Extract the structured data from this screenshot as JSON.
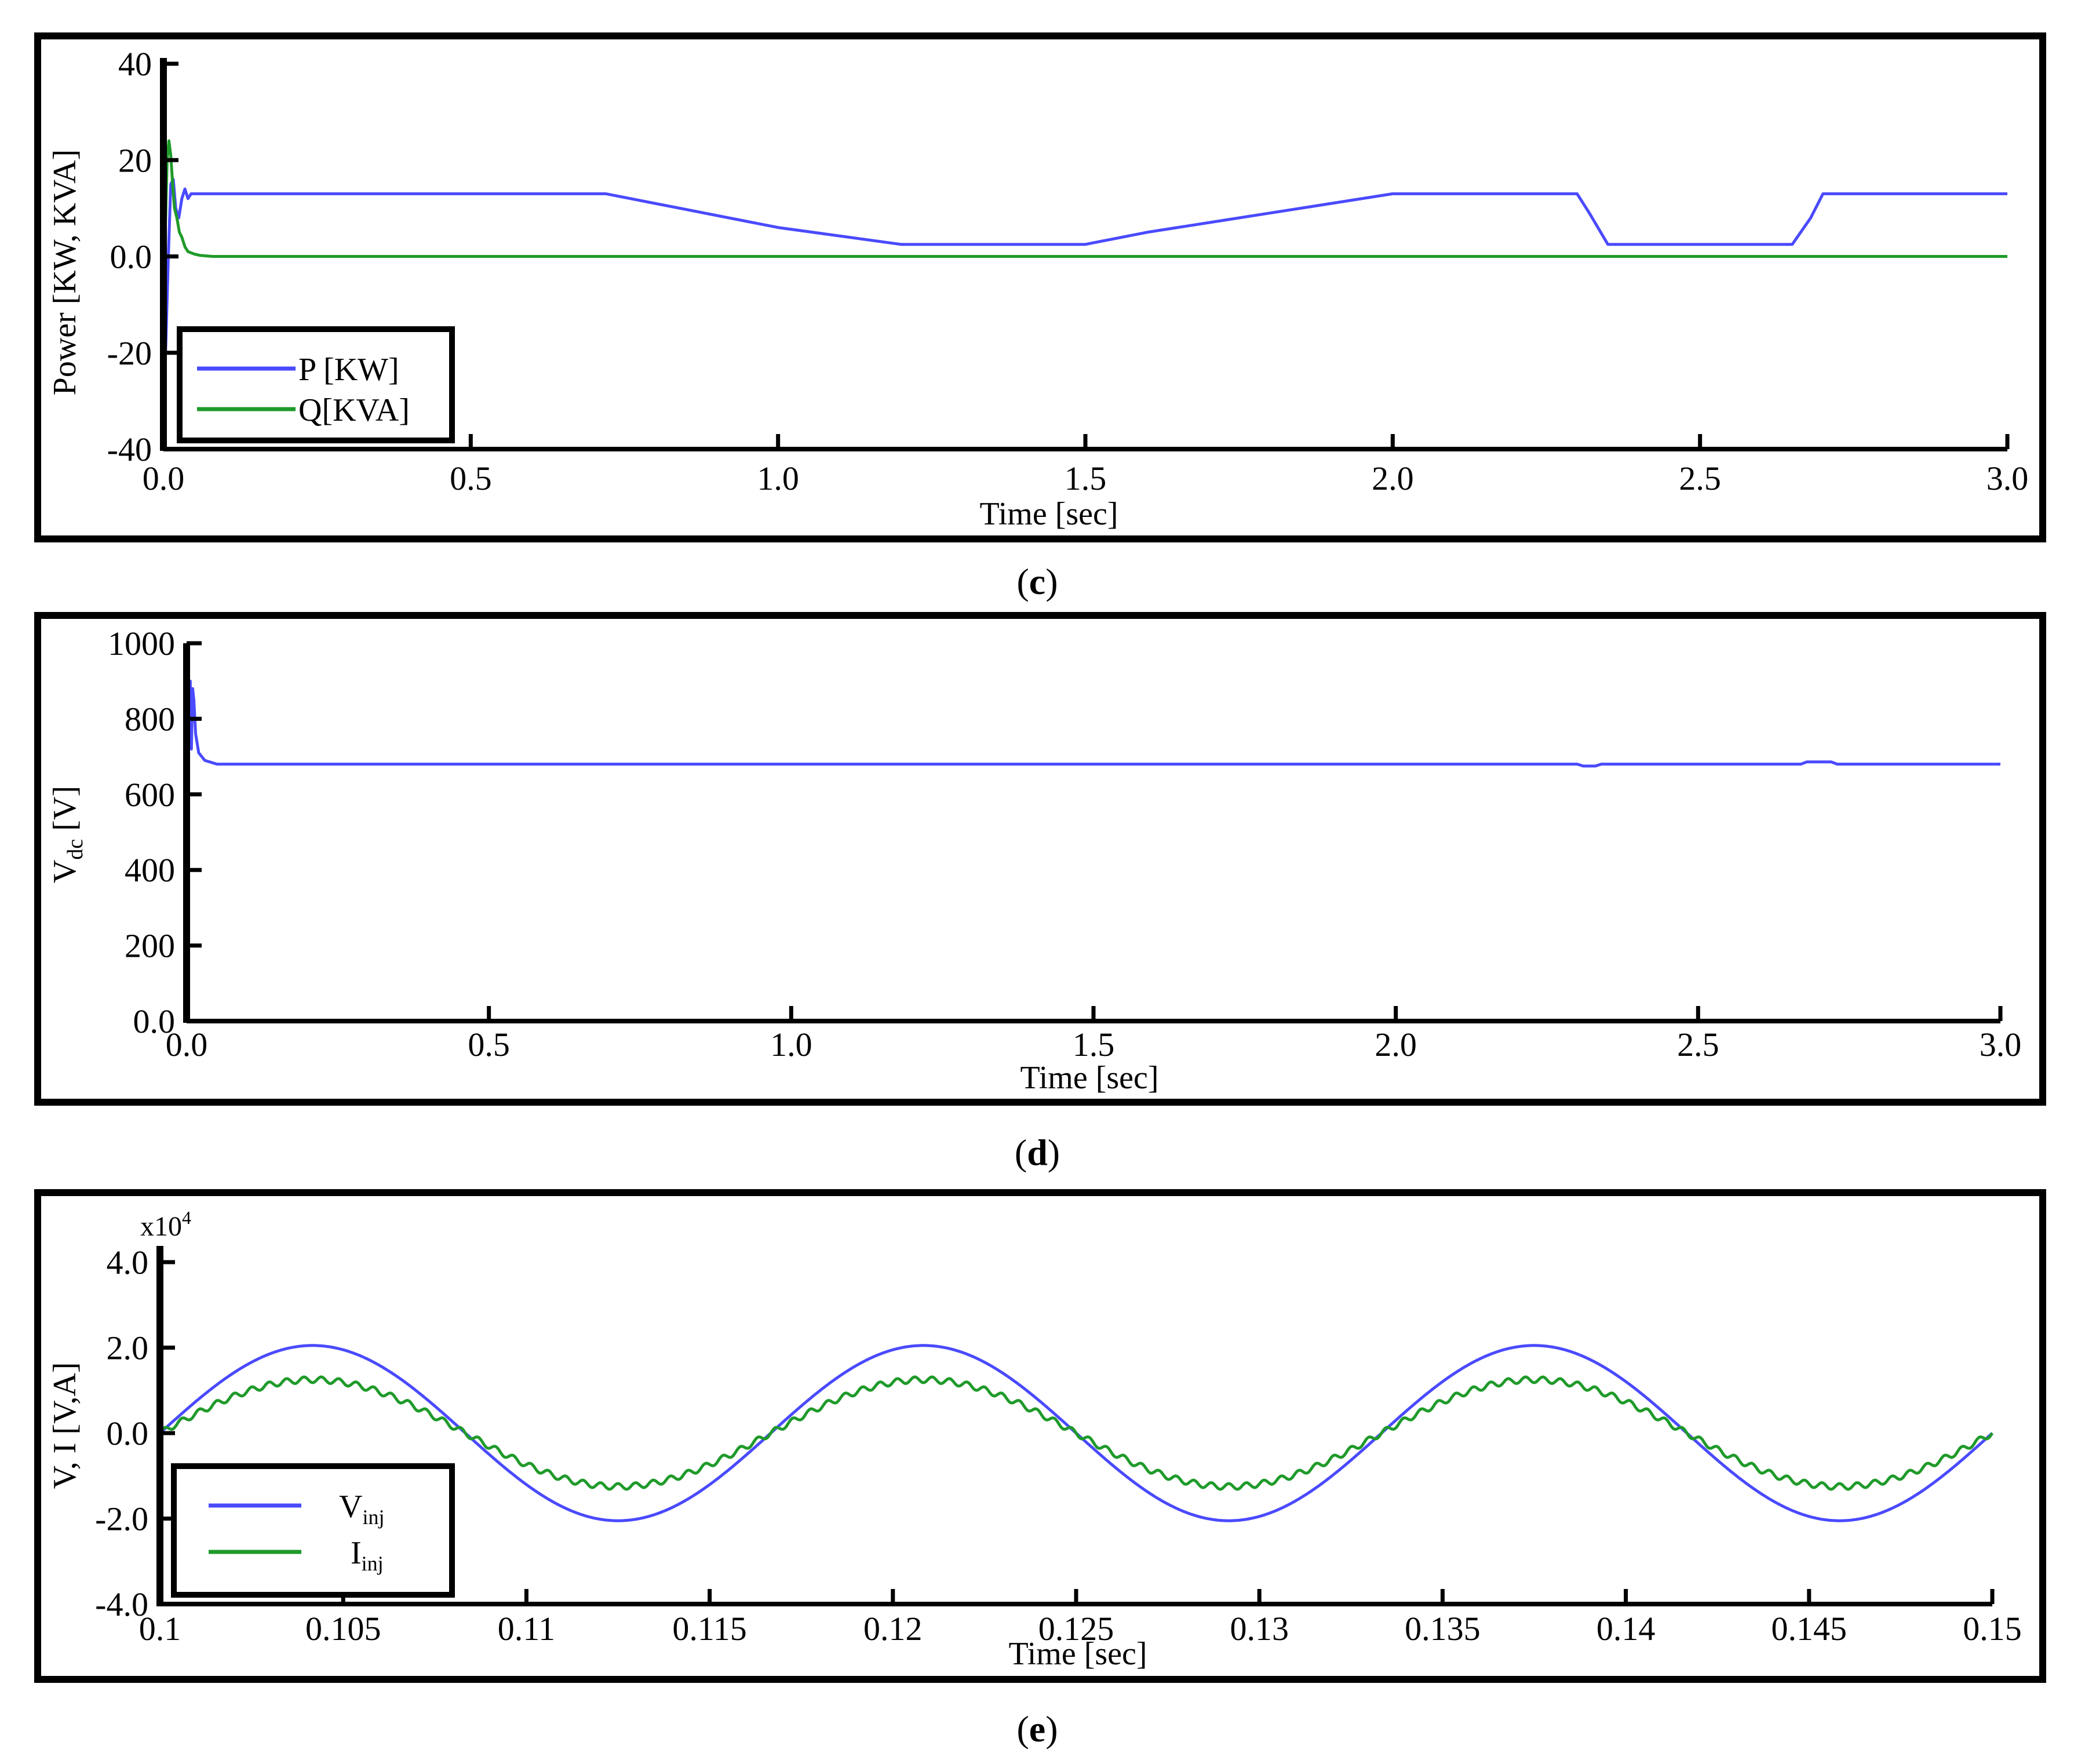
{
  "panels": [
    {
      "id": "c",
      "caption_letter": "c",
      "chart_data": {
        "type": "line",
        "xlabel": "Time [sec]",
        "ylabel": "Power [KW, KVA]",
        "xlim": [
          0,
          3.0
        ],
        "ylim": [
          -40,
          40
        ],
        "xticks": [
          "0.0",
          "0.5",
          "1.0",
          "1.5",
          "2.0",
          "2.5",
          "3.0"
        ],
        "xtick_values": [
          0,
          0.5,
          1.0,
          1.5,
          2.0,
          2.5,
          3.0
        ],
        "yticks": [
          "40",
          "20",
          "0.0",
          "-20",
          "-40"
        ],
        "ytick_values": [
          40,
          20,
          0,
          -20,
          -40
        ],
        "legend_position": "bottom-left",
        "grid": false,
        "series": [
          {
            "name": "P [KW]",
            "color": "#4a4aff",
            "x": [
              0,
              0.004,
              0.008,
              0.012,
              0.016,
              0.02,
              0.025,
              0.03,
              0.035,
              0.04,
              0.045,
              0.05,
              0.06,
              0.07,
              0.72,
              1.0,
              1.2,
              1.22,
              1.5,
              1.6,
              1.8,
              2.0,
              2.3,
              2.32,
              2.35,
              2.65,
              2.68,
              2.7,
              3.0
            ],
            "y": [
              -32,
              -18,
              0,
              15,
              16,
              10,
              8,
              12,
              14,
              12,
              13,
              13,
              13,
              13,
              13,
              6,
              2.5,
              2.5,
              2.5,
              5,
              9,
              13,
              13,
              9,
              2.5,
              2.5,
              8,
              13,
              13
            ]
          },
          {
            "name": "Q[KVA]",
            "color": "#1f9a2a",
            "x": [
              0,
              0.003,
              0.006,
              0.009,
              0.012,
              0.015,
              0.018,
              0.022,
              0.026,
              0.03,
              0.035,
              0.04,
              0.05,
              0.06,
              0.08,
              0.1,
              3.0
            ],
            "y": [
              -25,
              5,
              20,
              24,
              21,
              15,
              10,
              8,
              5,
              4,
              2,
              1,
              0.5,
              0.2,
              0,
              0,
              0
            ]
          }
        ]
      }
    },
    {
      "id": "d",
      "caption_letter": "d",
      "chart_data": {
        "type": "line",
        "xlabel": "Time [sec]",
        "ylabel": "V",
        "ylabel_sub": "dc",
        "ylabel_unit": " [V]",
        "xlim": [
          0,
          3.0
        ],
        "ylim": [
          0,
          1000
        ],
        "xticks": [
          "0.0",
          "0.5",
          "1.0",
          "1.5",
          "2.0",
          "2.5",
          "3.0"
        ],
        "xtick_values": [
          0,
          0.5,
          1.0,
          1.5,
          2.0,
          2.5,
          3.0
        ],
        "yticks": [
          "1000",
          "800",
          "600",
          "400",
          "200",
          "0.0"
        ],
        "ytick_values": [
          1000,
          800,
          600,
          400,
          200,
          0
        ],
        "legend_position": "none",
        "grid": false,
        "series": [
          {
            "name": "",
            "color": "#4a4aff",
            "x": [
              0,
              0.002,
              0.004,
              0.006,
              0.008,
              0.01,
              0.012,
              0.015,
              0.02,
              0.025,
              0.03,
              0.04,
              0.05,
              0.07,
              0.1,
              2.3,
              2.31,
              2.33,
              2.34,
              2.67,
              2.68,
              2.72,
              2.73,
              3.0
            ],
            "y": [
              430,
              960,
              800,
              900,
              720,
              880,
              850,
              760,
              710,
              700,
              690,
              685,
              680,
              680,
              680,
              680,
              675,
              675,
              680,
              680,
              686,
              686,
              680,
              680
            ]
          }
        ]
      }
    },
    {
      "id": "e",
      "caption_letter": "e",
      "chart_data": {
        "type": "line",
        "xlabel": "Time [sec]",
        "ylabel": "V, I [V,A]",
        "y_multiplier_base": "x10",
        "y_multiplier_exp": "4",
        "xlim": [
          0.1,
          0.15
        ],
        "ylim": [
          -4.0,
          4.0
        ],
        "xticks": [
          "0.1",
          "0.105",
          "0.11",
          "0.115",
          "0.12",
          "0.125",
          "0.13",
          "0.135",
          "0.14",
          "0.145",
          "0.15"
        ],
        "xtick_values": [
          0.1,
          0.105,
          0.11,
          0.115,
          0.12,
          0.125,
          0.13,
          0.135,
          0.14,
          0.145,
          0.15
        ],
        "yticks": [
          "4.0",
          "2.0",
          "0.0",
          "-2.0",
          "-4.0"
        ],
        "ytick_values": [
          4.0,
          2.0,
          0.0,
          -2.0,
          -4.0
        ],
        "legend_position": "bottom-left",
        "grid": false,
        "series": [
          {
            "name": "V",
            "name_sub": "inj",
            "color": "#4a4aff",
            "amplitude": 2.05,
            "frequency": 60,
            "phase_zero_t": 0.1,
            "ripple": 0
          },
          {
            "name": "I",
            "name_sub": "inj",
            "color": "#1f9a2a",
            "amplitude": 1.25,
            "frequency": 60,
            "phase_zero_t": 0.1,
            "ripple": 0.07
          }
        ]
      }
    }
  ]
}
